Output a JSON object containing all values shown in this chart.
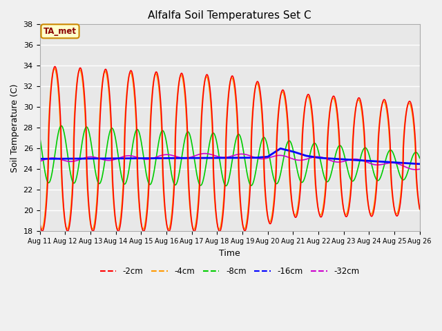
{
  "title": "Alfalfa Soil Temperatures Set C",
  "xlabel": "Time",
  "ylabel": "Soil Temperature (C)",
  "ylim": [
    18,
    38
  ],
  "xlim": [
    0,
    15
  ],
  "fig_bg_color": "#f0f0f0",
  "plot_bg_color": "#e8e8e8",
  "grid_color": "#ffffff",
  "annotation_text": "TA_met",
  "annotation_bg": "#ffffcc",
  "annotation_border": "#cc8800",
  "annotation_text_color": "#8b0000",
  "x_ticks": [
    0,
    1,
    2,
    3,
    4,
    5,
    6,
    7,
    8,
    9,
    10,
    11,
    12,
    13,
    14,
    15
  ],
  "x_tick_labels": [
    "Aug 11",
    "Aug 12",
    "Aug 13",
    "Aug 14",
    "Aug 15",
    "Aug 16",
    "Aug 17",
    "Aug 18",
    "Aug 19",
    "Aug 20",
    "Aug 21",
    "Aug 22",
    "Aug 23",
    "Aug 24",
    "Aug 25",
    "Aug 26"
  ],
  "y_ticks": [
    18,
    20,
    22,
    24,
    26,
    28,
    30,
    32,
    34,
    36,
    38
  ],
  "series": {
    "neg2cm": {
      "label": "-2cm",
      "color": "#ff0000",
      "linewidth": 1.2
    },
    "neg4cm": {
      "label": "-4cm",
      "color": "#ff9900",
      "linewidth": 1.2
    },
    "neg8cm": {
      "label": "-8cm",
      "color": "#00cc00",
      "linewidth": 1.2
    },
    "neg16cm": {
      "label": "-16cm",
      "color": "#0000ff",
      "linewidth": 2.0
    },
    "neg32cm": {
      "label": "-32cm",
      "color": "#cc00cc",
      "linewidth": 1.2
    }
  }
}
